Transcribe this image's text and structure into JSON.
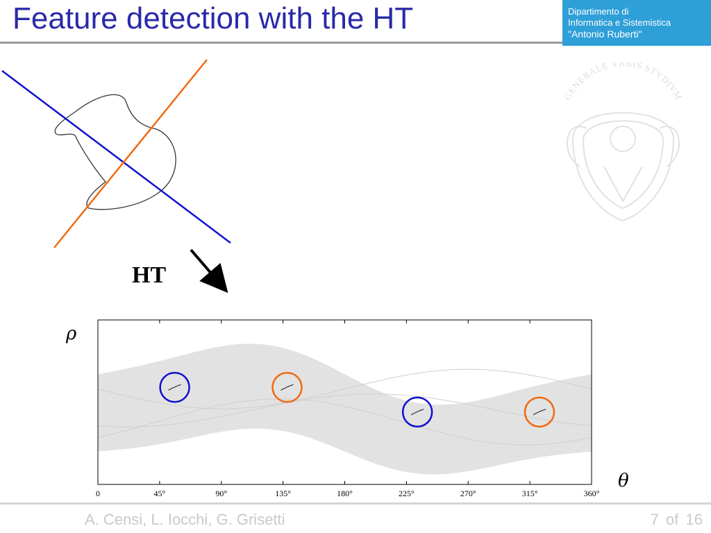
{
  "slide": {
    "title": "Feature detection with the HT",
    "arrow_label": "HT",
    "footer_authors": "A. Censi, L. Iocchi, G. Grisetti",
    "page_current": "7",
    "page_of": "of",
    "page_total": "16"
  },
  "department": {
    "line1": "Dipartimento di",
    "line2": "Informatica e Sistemistica",
    "line3": "\"Antonio Ruberti\"",
    "seal_text": "GENERALE VRBIS STVDIVM"
  },
  "colors": {
    "title": "#2a2aa8",
    "dept_box": "#2f9fd8",
    "blue_line": "#1010d0",
    "orange_line": "#f06a10",
    "band": "#e2e2e2",
    "footer_text": "#c9c9c9"
  },
  "hough": {
    "rho_label": "ρ",
    "theta_label": "θ",
    "x_ticks": [
      0,
      45,
      90,
      135,
      180,
      225,
      270,
      315,
      360
    ],
    "x_tick_labels": [
      "0",
      "45°",
      "90°",
      "135°",
      "180°",
      "225°",
      "270°",
      "315°",
      "360°"
    ],
    "xlim": [
      0,
      360
    ],
    "peaks": [
      {
        "theta": 56,
        "rho_frac": 0.41,
        "color": "blue"
      },
      {
        "theta": 138,
        "rho_frac": 0.41,
        "color": "orange"
      },
      {
        "theta": 233,
        "rho_frac": 0.56,
        "color": "blue"
      },
      {
        "theta": 322,
        "rho_frac": 0.56,
        "color": "orange"
      }
    ]
  }
}
